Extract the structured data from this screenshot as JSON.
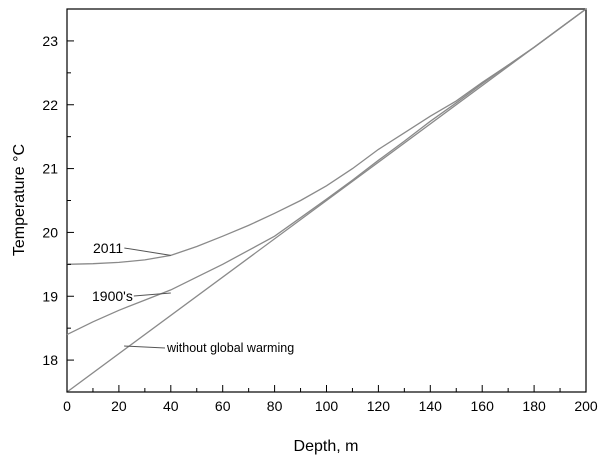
{
  "chart_data": {
    "type": "line",
    "xlabel": "Depth, m",
    "ylabel": "Temperature °C",
    "xlim": [
      0,
      200
    ],
    "ylim": [
      17.5,
      23.5
    ],
    "x_ticks": [
      "0",
      "20",
      "40",
      "60",
      "80",
      "100",
      "120",
      "140",
      "160",
      "180",
      "200"
    ],
    "y_ticks": [
      "18",
      "19",
      "20",
      "21",
      "22",
      "23"
    ],
    "grid": false,
    "legend": "none",
    "series": [
      {
        "name": "2011",
        "color": "#8a8a8a",
        "points": [
          [
            0,
            19.5
          ],
          [
            10,
            19.51
          ],
          [
            20,
            19.53
          ],
          [
            30,
            19.57
          ],
          [
            40,
            19.64
          ],
          [
            50,
            19.78
          ],
          [
            60,
            19.94
          ],
          [
            70,
            20.11
          ],
          [
            80,
            20.3
          ],
          [
            90,
            20.5
          ],
          [
            100,
            20.73
          ],
          [
            110,
            21.0
          ],
          [
            120,
            21.3
          ],
          [
            130,
            21.56
          ],
          [
            140,
            21.82
          ],
          [
            150,
            22.06
          ],
          [
            160,
            22.35
          ],
          [
            170,
            22.62
          ],
          [
            180,
            22.9
          ],
          [
            190,
            23.2
          ],
          [
            200,
            23.5
          ]
        ]
      },
      {
        "name": "1900's",
        "color": "#8a8a8a",
        "points": [
          [
            0,
            18.4
          ],
          [
            10,
            18.6
          ],
          [
            20,
            18.78
          ],
          [
            30,
            18.94
          ],
          [
            40,
            19.1
          ],
          [
            50,
            19.3
          ],
          [
            60,
            19.5
          ],
          [
            70,
            19.72
          ],
          [
            80,
            19.94
          ],
          [
            90,
            20.23
          ],
          [
            100,
            20.52
          ],
          [
            110,
            20.82
          ],
          [
            120,
            21.13
          ],
          [
            130,
            21.43
          ],
          [
            140,
            21.74
          ],
          [
            150,
            22.03
          ],
          [
            160,
            22.33
          ],
          [
            170,
            22.62
          ],
          [
            180,
            22.9
          ],
          [
            190,
            23.2
          ],
          [
            200,
            23.5
          ]
        ]
      },
      {
        "name": "without global warming",
        "color": "#8a8a8a",
        "points": [
          [
            0,
            17.5
          ],
          [
            200,
            23.5
          ]
        ]
      }
    ],
    "annotations": [
      {
        "text": "2011",
        "at": [
          40,
          19.64
        ]
      },
      {
        "text": "1900's",
        "at": [
          40,
          19.05
        ]
      },
      {
        "text": "without global warming",
        "at": [
          22,
          18.22
        ]
      }
    ]
  }
}
